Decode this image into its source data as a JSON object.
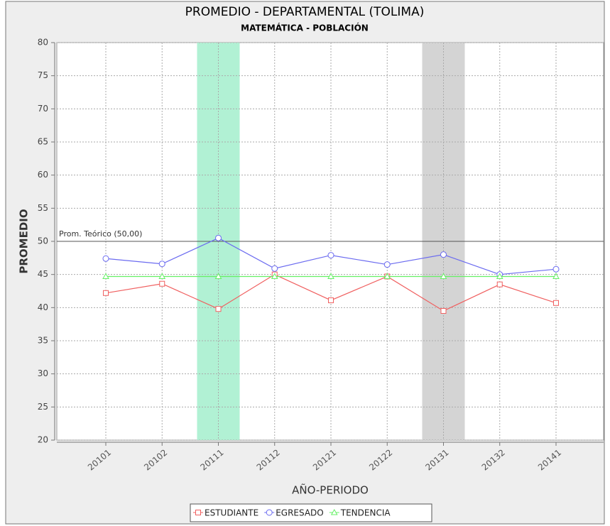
{
  "chart_data": {
    "type": "line",
    "title": "PROMEDIO - DEPARTAMENTAL (TOLIMA)",
    "subtitle": "MATEMÁTICA - POBLACIÓN",
    "x_label": "AÑO-PERIODO",
    "y_label": "PROMEDIO",
    "categories": [
      "20101",
      "20102",
      "20111",
      "20112",
      "20121",
      "20122",
      "20131",
      "20132",
      "20141"
    ],
    "series": [
      {
        "name": "ESTUDIANTE",
        "color": "#f06060",
        "marker": "square",
        "values": [
          42.2,
          43.6,
          39.8,
          45.0,
          41.1,
          44.7,
          39.5,
          43.5,
          40.7
        ]
      },
      {
        "name": "EGRESADO",
        "color": "#6b6bf0",
        "marker": "circle",
        "values": [
          47.4,
          46.6,
          50.5,
          45.9,
          47.9,
          46.5,
          48.0,
          45.0,
          45.8
        ]
      },
      {
        "name": "TENDENCIA",
        "color": "#66f066",
        "marker": "triangle",
        "values": [
          44.7,
          44.7,
          44.7,
          44.7,
          44.7,
          44.7,
          44.7,
          44.7,
          44.7
        ]
      }
    ],
    "highlights": [
      {
        "category": "20111",
        "color": "#b1f1d4"
      },
      {
        "category": "20131",
        "color": "#d4d4d4"
      }
    ],
    "annotations": [
      {
        "value": 50,
        "label": "Prom. Teórico (50,00)"
      }
    ],
    "ylim": [
      20,
      80
    ],
    "yticks": [
      20,
      25,
      30,
      35,
      40,
      45,
      50,
      55,
      60,
      65,
      70,
      75,
      80
    ],
    "grid": true,
    "legend": "bottom"
  }
}
